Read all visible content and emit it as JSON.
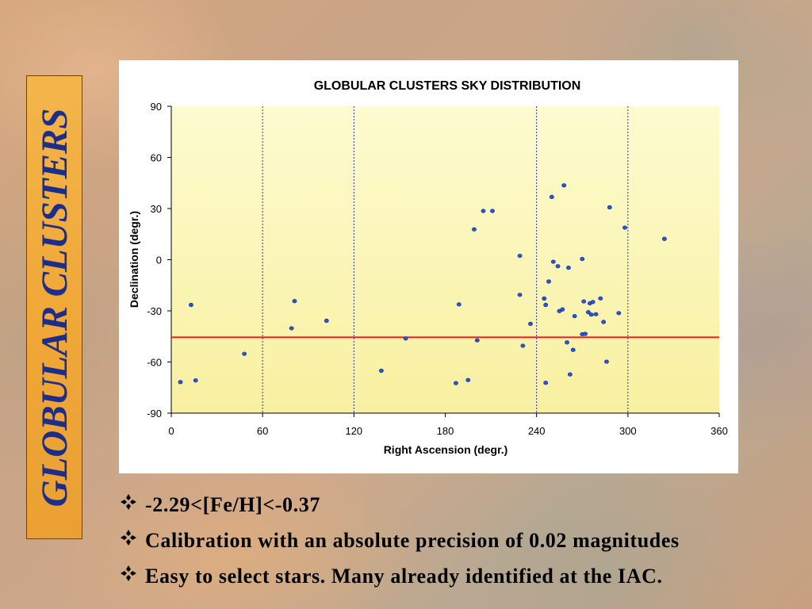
{
  "side_title": "GLOBULAR CLUSTERS",
  "colors": {
    "banner": "#f0a838",
    "banner_text": "#1d2e8a",
    "plot_bg_top": "#fdfbcf",
    "plot_bg_bottom": "#f8f0a0",
    "point": "#2b55d8",
    "ref_line": "#e02020"
  },
  "chart_data": {
    "type": "scatter",
    "title": "GLOBULAR CLUSTERS SKY DISTRIBUTION",
    "xlabel": "Right Ascension (degr.)",
    "ylabel": "Declination (degr.)",
    "xlim": [
      0,
      360
    ],
    "ylim": [
      -90,
      90
    ],
    "xticks": [
      0,
      60,
      120,
      180,
      240,
      300,
      360
    ],
    "yticks": [
      90,
      60,
      30,
      0,
      -30,
      -60,
      -90
    ],
    "vertical_gridlines": [
      60,
      120,
      240,
      300
    ],
    "horizontal_line": -45.5,
    "points": [
      [
        6,
        -71.8
      ],
      [
        13,
        -26.5
      ],
      [
        16,
        -70.8
      ],
      [
        48,
        -55.2
      ],
      [
        79,
        -40.2
      ],
      [
        81,
        -24.3
      ],
      [
        102,
        -35.8
      ],
      [
        138,
        -65.1
      ],
      [
        154,
        -46.2
      ],
      [
        187,
        -72.4
      ],
      [
        189,
        -26.2
      ],
      [
        195,
        -70.6
      ],
      [
        199,
        17.8
      ],
      [
        201,
        -47.3
      ],
      [
        205,
        28.6
      ],
      [
        211,
        28.6
      ],
      [
        229,
        2.3
      ],
      [
        229,
        -20.6
      ],
      [
        231,
        -50.5
      ],
      [
        236,
        -37.6
      ],
      [
        245,
        -22.8
      ],
      [
        246,
        -26.5
      ],
      [
        246,
        -72.2
      ],
      [
        248,
        -12.8
      ],
      [
        250,
        36.8
      ],
      [
        251,
        -1.2
      ],
      [
        254,
        -3.8
      ],
      [
        255,
        -30.1
      ],
      [
        257,
        -29.2
      ],
      [
        258,
        43.6
      ],
      [
        260,
        -48.5
      ],
      [
        261,
        -4.7
      ],
      [
        262,
        -67.3
      ],
      [
        264,
        -52.9
      ],
      [
        265,
        -33.1
      ],
      [
        270,
        0.4
      ],
      [
        270,
        -43.7
      ],
      [
        271,
        -24.5
      ],
      [
        272,
        -43.5
      ],
      [
        274,
        -30.8
      ],
      [
        275,
        -25.6
      ],
      [
        276,
        -32.2
      ],
      [
        277,
        -24.8
      ],
      [
        279,
        -32.0
      ],
      [
        282,
        -22.7
      ],
      [
        284,
        -36.5
      ],
      [
        286,
        -59.8
      ],
      [
        288,
        30.7
      ],
      [
        294,
        -31.3
      ],
      [
        298,
        18.8
      ],
      [
        324,
        12.2
      ]
    ]
  },
  "bullets": [
    {
      "icon": "diamond-bullet-icon",
      "text": "-2.29<[Fe/H]<-0.37"
    },
    {
      "icon": "diamond-bullet-icon",
      "text": "Calibration with an absolute precision of 0.02 magnitudes"
    },
    {
      "icon": "diamond-bullet-icon",
      "text": "Easy to select stars. Many already identified at the IAC."
    }
  ]
}
